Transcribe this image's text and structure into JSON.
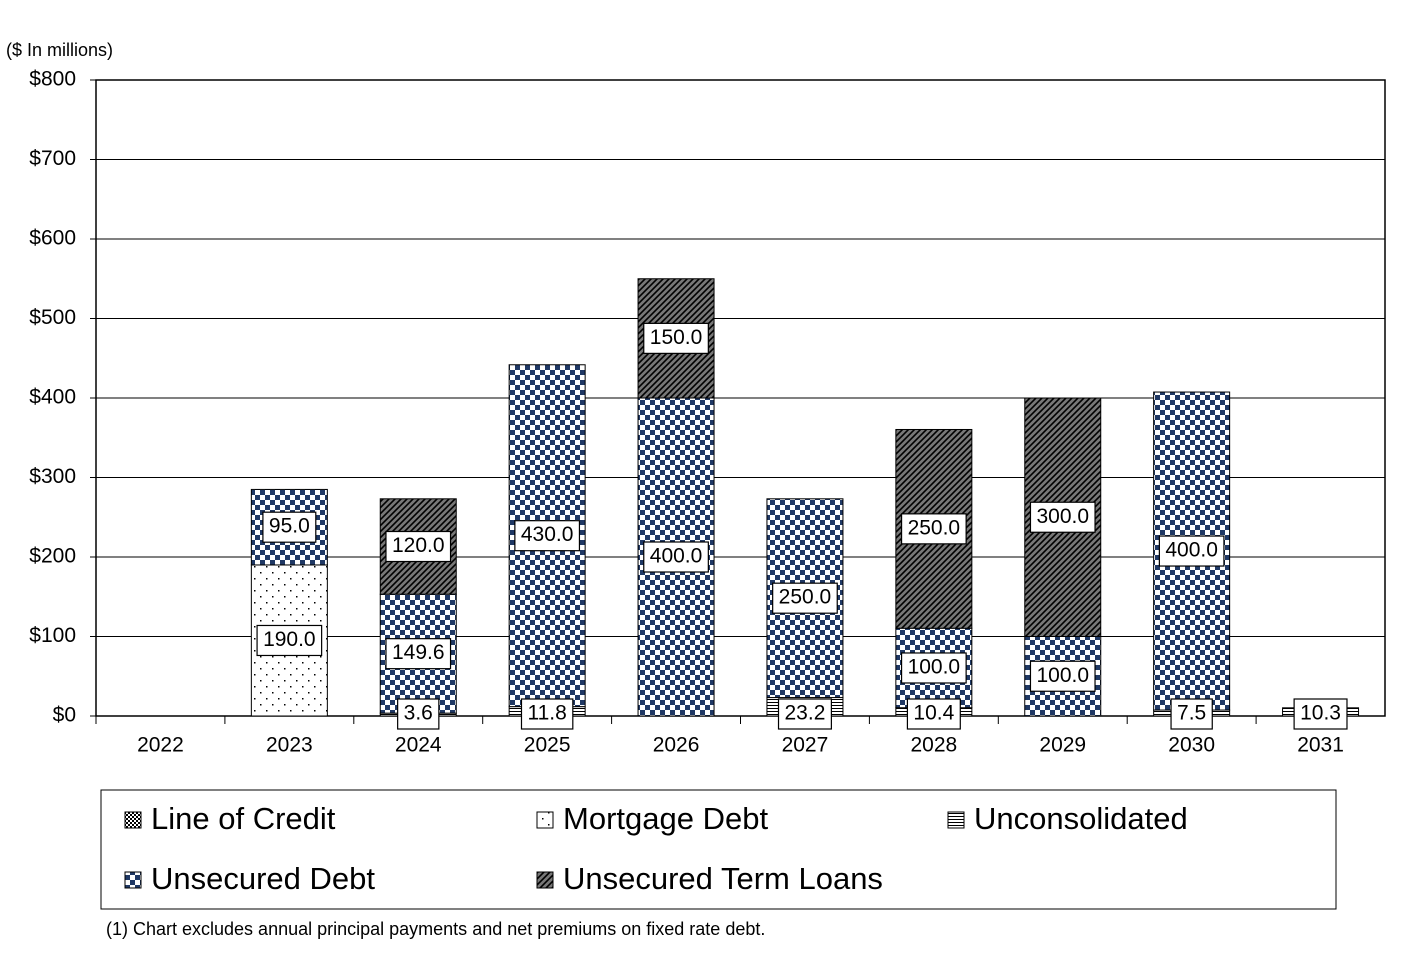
{
  "chart_data": {
    "type": "stacked-bar",
    "y_axis_label": "($ In millions)",
    "footnote": "(1) Chart excludes annual principal payments and net premiums on fixed rate debt.",
    "categories": [
      "2022",
      "2023",
      "2024",
      "2025",
      "2026",
      "2027",
      "2028",
      "2029",
      "2030",
      "2031"
    ],
    "series": [
      {
        "name": "Line of Credit",
        "color": "#000000",
        "values": [
          null,
          null,
          null,
          null,
          null,
          null,
          null,
          null,
          null,
          null
        ]
      },
      {
        "name": "Mortgage Debt",
        "color": "#000000",
        "values": [
          null,
          190.0,
          null,
          null,
          null,
          null,
          null,
          null,
          null,
          null
        ],
        "value_labels": [
          null,
          "190.0",
          null,
          null,
          null,
          null,
          null,
          null,
          null,
          null
        ]
      },
      {
        "name": "Unconsolidated",
        "color": "#000000",
        "values": [
          null,
          null,
          3.6,
          11.8,
          null,
          23.2,
          10.4,
          null,
          7.5,
          10.3
        ]
      },
      {
        "name": "Unsecured Debt",
        "color": "#1f3864",
        "values": [
          null,
          95.0,
          149.6,
          430.0,
          400.0,
          250.0,
          100.0,
          100.0,
          400.0,
          null
        ],
        "value_labels": [
          null,
          "95.0",
          null,
          "430.0",
          "400.0",
          "250.0",
          "100.0",
          "100.0",
          "400.0",
          null
        ]
      },
      {
        "name": "Unsecured Term Loans",
        "color": "#000000",
        "values": [
          null,
          null,
          120.0,
          null,
          150.0,
          null,
          250.0,
          300.0,
          null,
          null
        ],
        "value_labels": [
          null,
          null,
          "120.0",
          null,
          "150.0",
          null,
          "250.0",
          "300.0",
          null,
          null
        ]
      }
    ],
    "ylim": [
      0,
      800
    ],
    "yticks": [
      {
        "value": 0,
        "label": "$0"
      },
      {
        "value": 100,
        "label": "$100"
      },
      {
        "value": 200,
        "label": "$200"
      },
      {
        "value": 300,
        "label": "$300"
      },
      {
        "value": 400,
        "label": "$400"
      },
      {
        "value": 500,
        "label": "$500"
      },
      {
        "value": 600,
        "label": "$600"
      },
      {
        "value": 700,
        "label": "$700"
      },
      {
        "value": 800,
        "label": "$800"
      }
    ],
    "grid": true
  }
}
